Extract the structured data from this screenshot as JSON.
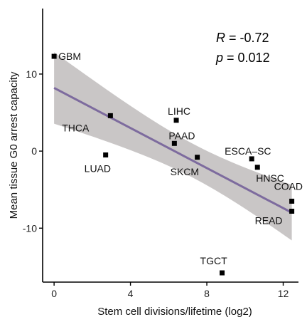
{
  "chart_data": {
    "type": "scatter",
    "xlabel": "Stem cell divisions/lifetime (log2)",
    "ylabel": "Mean tissue G0 arrest capacity",
    "xlim": [
      -0.6,
      12.8
    ],
    "ylim": [
      -17,
      18.5
    ],
    "x_ticks": [
      0,
      4,
      8,
      12
    ],
    "x_tick_labels": [
      "0",
      "4",
      "8",
      "12"
    ],
    "y_ticks": [
      10,
      0,
      -10
    ],
    "y_tick_labels": [
      "10",
      "0",
      "-10"
    ],
    "grid": false,
    "stats": {
      "r_symbol": "R",
      "r_eq": " = -0.72",
      "p_symbol": "p",
      "p_eq": " = 0.012"
    },
    "regression": {
      "intercept": 8.2,
      "slope": -1.3,
      "line_color": "#7d6b9e",
      "band_color": "#c9c6c6"
    },
    "points": [
      {
        "label": "GBM",
        "x": 0.0,
        "y": 12.3
      },
      {
        "label": "THCA",
        "x": 2.95,
        "y": 4.6
      },
      {
        "label": "LUAD",
        "x": 2.7,
        "y": -0.5
      },
      {
        "label": "LIHC",
        "x": 6.4,
        "y": 4.0
      },
      {
        "label": "PAAD",
        "x": 6.3,
        "y": 1.0
      },
      {
        "label": "SKCM",
        "x": 7.5,
        "y": -0.8
      },
      {
        "label": "ESCA–SC",
        "x": 10.35,
        "y": -1.0
      },
      {
        "label": "HNSC",
        "x": 10.65,
        "y": -2.1
      },
      {
        "label": "COAD",
        "x": 12.45,
        "y": -6.5
      },
      {
        "label": "READ",
        "x": 12.45,
        "y": -7.8
      },
      {
        "label": "TGCT",
        "x": 8.8,
        "y": -15.8
      }
    ]
  }
}
